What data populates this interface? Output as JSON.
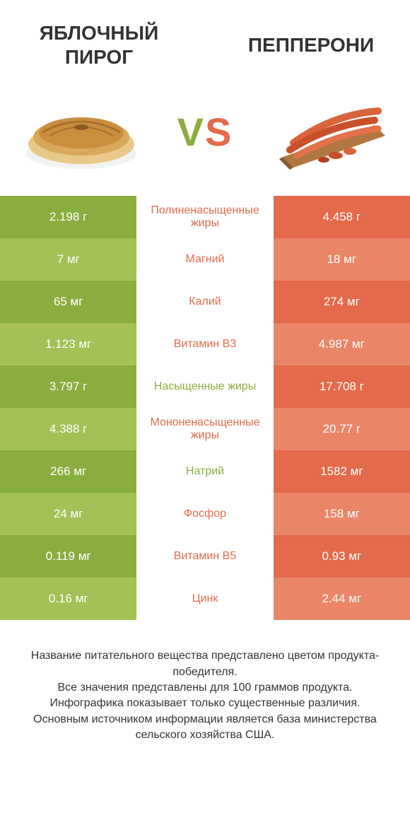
{
  "header": {
    "left_title": "ЯБЛОЧНЫЙ ПИРОГ",
    "right_title": "ПЕППЕРОНИ"
  },
  "vs": {
    "v": "V",
    "s": "S"
  },
  "colors": {
    "left_dark": "#8aad3f",
    "left_light": "#a3c157",
    "right_dark": "#e36a4b",
    "right_light": "#ea8568",
    "mid_text_green": "#8aad3f",
    "mid_text_orange": "#e36a4b"
  },
  "rows": [
    {
      "left": "2.198 г",
      "mid": "Полиненасыщенные жиры",
      "right": "4.458 г",
      "winner": "right"
    },
    {
      "left": "7 мг",
      "mid": "Магний",
      "right": "18 мг",
      "winner": "right"
    },
    {
      "left": "65 мг",
      "mid": "Калий",
      "right": "274 мг",
      "winner": "right"
    },
    {
      "left": "1.123 мг",
      "mid": "Витамин B3",
      "right": "4.987 мг",
      "winner": "right"
    },
    {
      "left": "3.797 г",
      "mid": "Насыщенные жиры",
      "right": "17.708 г",
      "winner": "left"
    },
    {
      "left": "4.388 г",
      "mid": "Мононенасыщенные жиры",
      "right": "20.77 г",
      "winner": "right"
    },
    {
      "left": "266 мг",
      "mid": "Натрий",
      "right": "1582 мг",
      "winner": "left"
    },
    {
      "left": "24 мг",
      "mid": "Фосфор",
      "right": "158 мг",
      "winner": "right"
    },
    {
      "left": "0.119 мг",
      "mid": "Витамин B5",
      "right": "0.93 мг",
      "winner": "right"
    },
    {
      "left": "0.16 мг",
      "mid": "Цинк",
      "right": "2.44 мг",
      "winner": "right"
    }
  ],
  "footer": {
    "line1": "Название питательного вещества представлено цветом продукта-победителя.",
    "line2": "Все значения представлены для 100 граммов продукта.",
    "line3": "Инфографика показывает только существенные различия.",
    "line4": "Основным источником информации является база министерства сельского хозяйства США."
  }
}
